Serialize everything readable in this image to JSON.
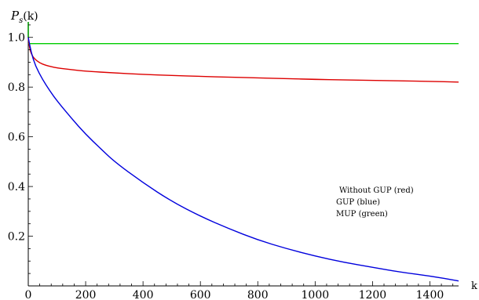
{
  "chart_data": {
    "type": "line",
    "ylabel": "P_s(k)",
    "ylabel_main": "P",
    "ylabel_sub": "s",
    "ylabel_suffix": "(k)",
    "xlabel": "k",
    "xlim": [
      0,
      1500
    ],
    "ylim": [
      0,
      1.1
    ],
    "x_ticks": [
      0,
      200,
      400,
      600,
      800,
      1000,
      1200,
      1400
    ],
    "y_ticks": [
      0.2,
      0.4,
      0.6,
      0.8,
      1.0
    ],
    "y_tick_labels": [
      "0.2",
      "0.4",
      "0.6",
      "0.8",
      "1.0"
    ],
    "grid": false,
    "legend_placement": "center-right",
    "legend": [
      "Without GUP (red)",
      "GUP (blue)",
      "MUP (green)"
    ],
    "series": [
      {
        "color": "#00cc00",
        "x": [
          0,
          1500
        ],
        "y": [
          0.975,
          0.975
        ]
      },
      {
        "color": "#dd0000",
        "x": [
          0,
          5,
          10,
          20,
          40,
          60,
          80,
          100,
          150,
          200,
          300,
          400,
          500,
          600,
          700,
          800,
          900,
          1000,
          1100,
          1200,
          1300,
          1400,
          1500
        ],
        "y": [
          1.0,
          0.955,
          0.935,
          0.915,
          0.897,
          0.888,
          0.882,
          0.877,
          0.87,
          0.864,
          0.857,
          0.851,
          0.847,
          0.843,
          0.84,
          0.837,
          0.834,
          0.831,
          0.829,
          0.827,
          0.825,
          0.823,
          0.82
        ]
      },
      {
        "color": "#0000dd",
        "x": [
          0,
          10,
          25,
          50,
          75,
          100,
          150,
          200,
          250,
          300,
          400,
          500,
          600,
          700,
          800,
          900,
          1000,
          1100,
          1200,
          1300,
          1400,
          1500
        ],
        "y": [
          1.0,
          0.94,
          0.885,
          0.83,
          0.785,
          0.745,
          0.675,
          0.61,
          0.555,
          0.5,
          0.415,
          0.34,
          0.28,
          0.23,
          0.185,
          0.15,
          0.12,
          0.095,
          0.075,
          0.055,
          0.04,
          0.02
        ]
      }
    ]
  }
}
